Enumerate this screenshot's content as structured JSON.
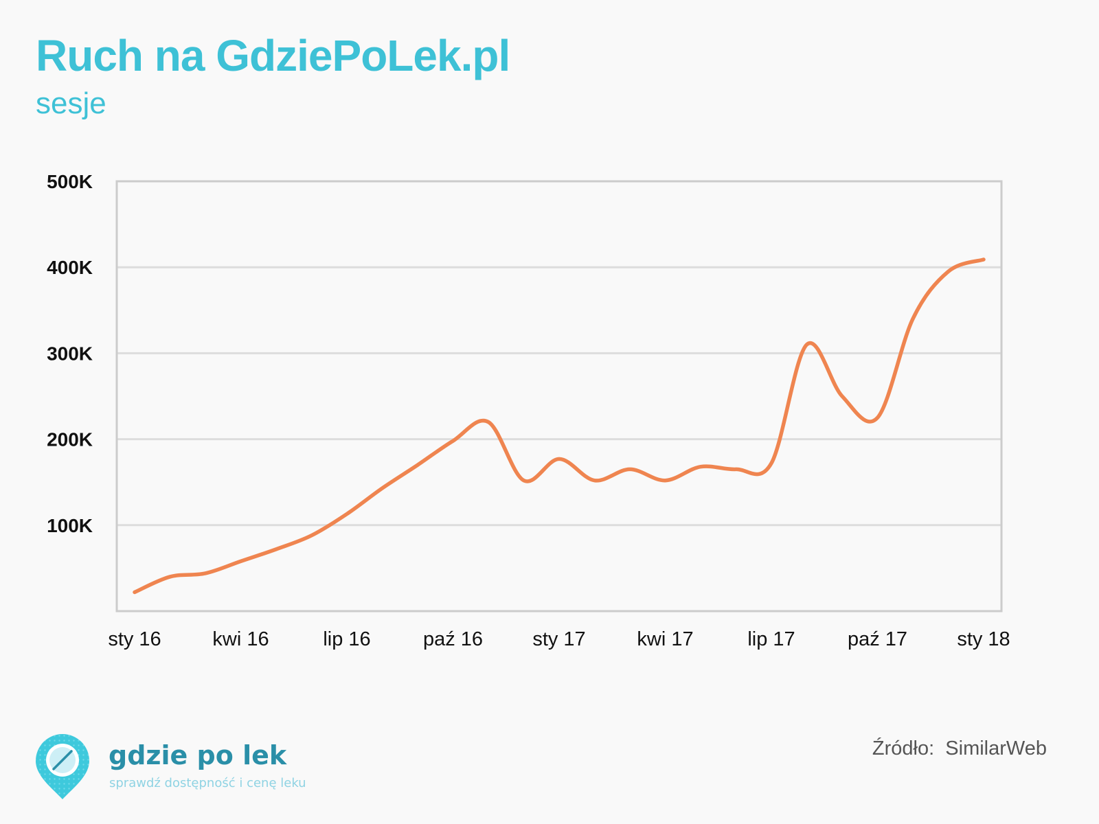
{
  "header": {
    "title": "Ruch na GdziePoLek.pl",
    "subtitle": "sesje"
  },
  "brand": {
    "name": "gdzie po lek",
    "tagline": "sprawdź dostępność i cenę leku"
  },
  "source": {
    "label": "Źródło:",
    "value": "SimilarWeb"
  },
  "colors": {
    "title": "#3ec1d6",
    "line": "#ef8550",
    "grid": "#dddddd",
    "frame": "#cccccc",
    "brand": "#2a8fa8"
  },
  "chart_data": {
    "type": "line",
    "title": "Ruch na GdziePoLek.pl",
    "subtitle": "sesje",
    "xlabel": "",
    "ylabel": "",
    "x_ticks": [
      "sty 16",
      "kwi 16",
      "lip 16",
      "paź 16",
      "sty 17",
      "kwi 17",
      "lip 17",
      "paź 17",
      "sty 18"
    ],
    "y_ticks": [
      {
        "value": 100000,
        "label": "100K"
      },
      {
        "value": 200000,
        "label": "200K"
      },
      {
        "value": 300000,
        "label": "300K"
      },
      {
        "value": 400000,
        "label": "400K"
      },
      {
        "value": 500000,
        "label": "500K"
      }
    ],
    "grid": true,
    "legend": "none",
    "series": [
      {
        "x": [
          "sty 16",
          "lut 16",
          "mar 16",
          "kwi 16",
          "maj 16",
          "cze 16",
          "lip 16",
          "sie 16",
          "wrz 16",
          "paź 16",
          "lis 16",
          "gru 16",
          "sty 17",
          "lut 17",
          "mar 17",
          "kwi 17",
          "maj 17",
          "cze 17",
          "lip 17",
          "sie 17",
          "wrz 17",
          "paź 17",
          "lis 17",
          "gru 17",
          "sty 18"
        ],
        "values": [
          22000,
          40000,
          44000,
          58000,
          72000,
          88000,
          113000,
          143000,
          170000,
          198000,
          220000,
          152000,
          177000,
          152000,
          165000,
          152000,
          168000,
          165000,
          172000,
          310000,
          250000,
          225000,
          340000,
          395000,
          409000
        ]
      }
    ]
  }
}
